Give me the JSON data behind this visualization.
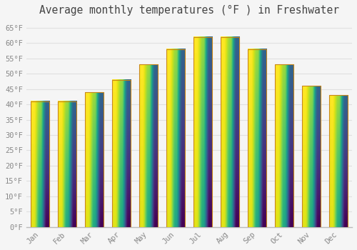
{
  "title": "Average monthly temperatures (°F ) in Freshwater",
  "months": [
    "Jan",
    "Feb",
    "Mar",
    "Apr",
    "May",
    "Jun",
    "Jul",
    "Aug",
    "Sep",
    "Oct",
    "Nov",
    "Dec"
  ],
  "values": [
    41,
    41,
    44,
    48,
    53,
    58,
    62,
    62,
    58,
    53,
    46,
    43
  ],
  "bar_color_top": "#FFD966",
  "bar_color_bottom": "#F5A623",
  "bar_edge_color": "#C8871A",
  "background_color": "#F5F5F5",
  "grid_color": "#E0E0E0",
  "tick_color": "#888888",
  "title_color": "#444444",
  "ylim": [
    0,
    67
  ],
  "yticks": [
    0,
    5,
    10,
    15,
    20,
    25,
    30,
    35,
    40,
    45,
    50,
    55,
    60,
    65
  ],
  "tick_fontsize": 7.5,
  "title_fontsize": 10.5,
  "bar_width": 0.7
}
